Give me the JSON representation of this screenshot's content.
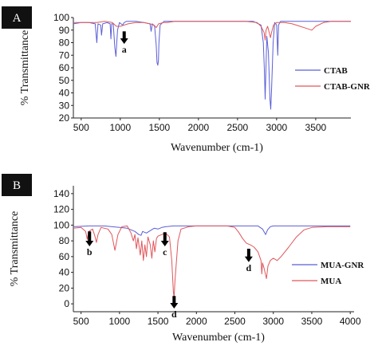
{
  "chart_data": [
    {
      "panel_label": "A",
      "type": "line",
      "xlabel": "Wavenumber (cm-1)",
      "ylabel": "% Transmittance",
      "xlim": [
        400,
        3950
      ],
      "ylim": [
        20,
        100
      ],
      "x_ticks": [
        500,
        1000,
        1500,
        2000,
        2500,
        3000,
        3500
      ],
      "y_ticks": [
        20,
        30,
        40,
        50,
        60,
        70,
        80,
        90,
        100
      ],
      "legend_position": "right",
      "series": [
        {
          "name": "CTAB",
          "color": "#5b5fd6",
          "points": [
            [
              400,
              95
            ],
            [
              500,
              96
            ],
            [
              600,
              96
            ],
            [
              680,
              95
            ],
            [
              700,
              80
            ],
            [
              715,
              95
            ],
            [
              750,
              94
            ],
            [
              760,
              86
            ],
            [
              775,
              95
            ],
            [
              830,
              96
            ],
            [
              870,
              95
            ],
            [
              880,
              83
            ],
            [
              890,
              95
            ],
            [
              910,
              95
            ],
            [
              930,
              76
            ],
            [
              945,
              69
            ],
            [
              955,
              80
            ],
            [
              965,
              90
            ],
            [
              990,
              96
            ],
            [
              1010,
              95
            ],
            [
              1030,
              94
            ],
            [
              1050,
              96
            ],
            [
              1080,
              97
            ],
            [
              1200,
              97
            ],
            [
              1300,
              96
            ],
            [
              1380,
              95
            ],
            [
              1395,
              89
            ],
            [
              1410,
              95
            ],
            [
              1440,
              93
            ],
            [
              1460,
              78
            ],
            [
              1470,
              64
            ],
            [
              1480,
              62
            ],
            [
              1488,
              66
            ],
            [
              1495,
              80
            ],
            [
              1510,
              94
            ],
            [
              1560,
              97
            ],
            [
              1700,
              97
            ],
            [
              2000,
              97
            ],
            [
              2400,
              97
            ],
            [
              2700,
              97
            ],
            [
              2800,
              94
            ],
            [
              2830,
              80
            ],
            [
              2845,
              55
            ],
            [
              2853,
              35
            ],
            [
              2862,
              55
            ],
            [
              2875,
              85
            ],
            [
              2895,
              72
            ],
            [
              2915,
              35
            ],
            [
              2925,
              27
            ],
            [
              2935,
              42
            ],
            [
              2955,
              80
            ],
            [
              2975,
              96
            ],
            [
              3000,
              94
            ],
            [
              3015,
              70
            ],
            [
              3025,
              94
            ],
            [
              3050,
              97
            ],
            [
              3300,
              97
            ],
            [
              3600,
              97
            ],
            [
              3950,
              97
            ]
          ]
        },
        {
          "name": "CTAB-GNR",
          "color": "#e0575b",
          "points": [
            [
              400,
              96
            ],
            [
              500,
              96
            ],
            [
              600,
              96
            ],
            [
              700,
              96
            ],
            [
              800,
              97
            ],
            [
              900,
              96
            ],
            [
              950,
              93
            ],
            [
              1000,
              93
            ],
            [
              1100,
              95
            ],
            [
              1200,
              96
            ],
            [
              1300,
              96
            ],
            [
              1380,
              95
            ],
            [
              1430,
              94
            ],
            [
              1460,
              92
            ],
            [
              1490,
              95
            ],
            [
              1550,
              96
            ],
            [
              1600,
              96
            ],
            [
              1700,
              97
            ],
            [
              2000,
              97
            ],
            [
              2300,
              97
            ],
            [
              2600,
              97
            ],
            [
              2750,
              96
            ],
            [
              2800,
              93
            ],
            [
              2840,
              88
            ],
            [
              2853,
              82
            ],
            [
              2865,
              90
            ],
            [
              2885,
              93
            ],
            [
              2905,
              88
            ],
            [
              2922,
              84
            ],
            [
              2935,
              88
            ],
            [
              2960,
              94
            ],
            [
              3000,
              96
            ],
            [
              3100,
              96
            ],
            [
              3200,
              95
            ],
            [
              3300,
              93
            ],
            [
              3400,
              91
            ],
            [
              3450,
              90
            ],
            [
              3500,
              93
            ],
            [
              3600,
              96
            ],
            [
              3700,
              97
            ],
            [
              3800,
              97
            ],
            [
              3950,
              97
            ]
          ]
        }
      ],
      "annotations": [
        {
          "label": "a",
          "x": 1050,
          "arrow_from_y": 89,
          "arrow_to_y": 79
        }
      ]
    },
    {
      "panel_label": "B",
      "type": "line",
      "xlabel": "Wavenumber (cm-1)",
      "ylabel": "% Transmittance",
      "xlim": [
        400,
        4050
      ],
      "ylim": [
        -10,
        150
      ],
      "x_ticks": [
        500,
        1000,
        1500,
        2000,
        2500,
        3000,
        3500,
        4000
      ],
      "y_ticks": [
        0,
        20,
        40,
        60,
        80,
        100,
        120,
        140
      ],
      "legend_position": "right",
      "series": [
        {
          "name": "MUA-GNR",
          "color": "#5b5fd6",
          "points": [
            [
              400,
              98
            ],
            [
              600,
              99
            ],
            [
              800,
              99
            ],
            [
              1000,
              97
            ],
            [
              1100,
              96
            ],
            [
              1200,
              92
            ],
            [
              1250,
              88
            ],
            [
              1280,
              87
            ],
            [
              1300,
              92
            ],
            [
              1350,
              90
            ],
            [
              1400,
              93
            ],
            [
              1450,
              96
            ],
            [
              1500,
              95
            ],
            [
              1550,
              97
            ],
            [
              1600,
              98
            ],
            [
              1700,
              99
            ],
            [
              2000,
              99
            ],
            [
              2400,
              99
            ],
            [
              2800,
              99
            ],
            [
              2860,
              95
            ],
            [
              2900,
              88
            ],
            [
              2925,
              94
            ],
            [
              2960,
              98
            ],
            [
              3000,
              99
            ],
            [
              3400,
              99
            ],
            [
              3800,
              99
            ],
            [
              4000,
              99
            ]
          ]
        },
        {
          "name": "MUA",
          "color": "#e0575b",
          "points": [
            [
              400,
              96
            ],
            [
              500,
              97
            ],
            [
              560,
              92
            ],
            [
              580,
              82
            ],
            [
              600,
              92
            ],
            [
              650,
              95
            ],
            [
              680,
              86
            ],
            [
              700,
              78
            ],
            [
              720,
              88
            ],
            [
              760,
              97
            ],
            [
              850,
              95
            ],
            [
              900,
              88
            ],
            [
              940,
              68
            ],
            [
              980,
              88
            ],
            [
              1030,
              98
            ],
            [
              1100,
              99
            ],
            [
              1150,
              90
            ],
            [
              1180,
              80
            ],
            [
              1200,
              88
            ],
            [
              1220,
              70
            ],
            [
              1240,
              84
            ],
            [
              1270,
              62
            ],
            [
              1290,
              80
            ],
            [
              1310,
              55
            ],
            [
              1330,
              75
            ],
            [
              1350,
              60
            ],
            [
              1370,
              85
            ],
            [
              1400,
              75
            ],
            [
              1420,
              58
            ],
            [
              1440,
              80
            ],
            [
              1460,
              66
            ],
            [
              1480,
              83
            ],
            [
              1500,
              86
            ],
            [
              1550,
              88
            ],
            [
              1600,
              90
            ],
            [
              1650,
              85
            ],
            [
              1680,
              55
            ],
            [
              1700,
              15
            ],
            [
              1710,
              8
            ],
            [
              1720,
              28
            ],
            [
              1760,
              80
            ],
            [
              1800,
              95
            ],
            [
              1900,
              98
            ],
            [
              2000,
              99
            ],
            [
              2200,
              99
            ],
            [
              2400,
              99
            ],
            [
              2500,
              97
            ],
            [
              2550,
              91
            ],
            [
              2600,
              83
            ],
            [
              2650,
              77
            ],
            [
              2700,
              75
            ],
            [
              2750,
              72
            ],
            [
              2800,
              66
            ],
            [
              2840,
              55
            ],
            [
              2850,
              38
            ],
            [
              2860,
              52
            ],
            [
              2880,
              45
            ],
            [
              2910,
              32
            ],
            [
              2930,
              48
            ],
            [
              2960,
              55
            ],
            [
              3000,
              58
            ],
            [
              3050,
              55
            ],
            [
              3100,
              60
            ],
            [
              3200,
              72
            ],
            [
              3300,
              85
            ],
            [
              3400,
              94
            ],
            [
              3500,
              97
            ],
            [
              3700,
              98
            ],
            [
              3850,
              98
            ],
            [
              4000,
              98
            ]
          ]
        }
      ],
      "annotations": [
        {
          "label": "b",
          "x": 610,
          "arrow_from_y": 92,
          "arrow_to_y": 73
        },
        {
          "label": "c",
          "x": 1590,
          "arrow_from_y": 91,
          "arrow_to_y": 73
        },
        {
          "label": "d",
          "x": 2680,
          "arrow_from_y": 70,
          "arrow_to_y": 53
        },
        {
          "label": "d",
          "x": 1710,
          "arrow_from_y": 10,
          "arrow_to_y": -6
        }
      ]
    }
  ]
}
